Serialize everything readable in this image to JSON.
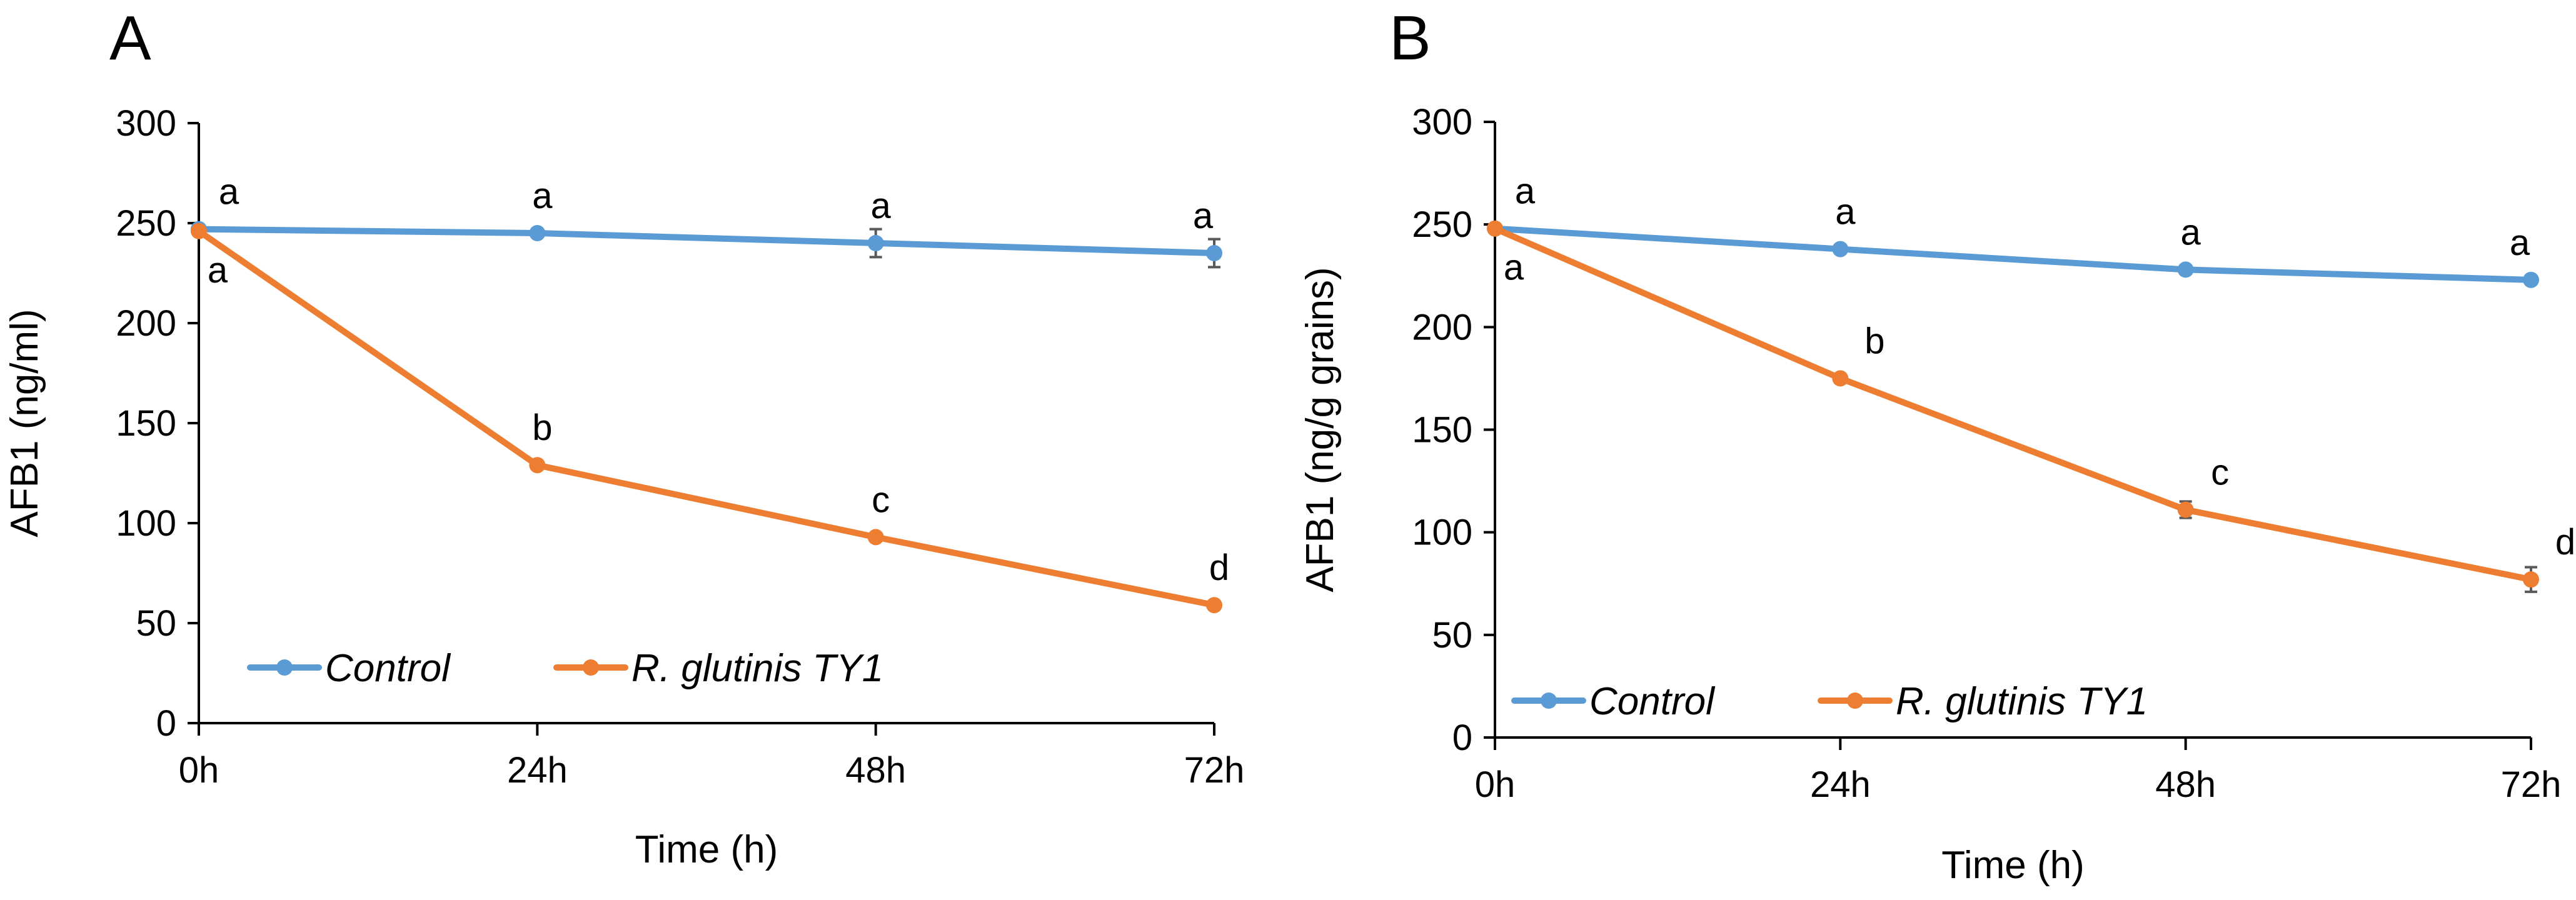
{
  "chart_data": [
    {
      "type": "line",
      "panel_label": "A",
      "title": "",
      "xlabel": "Time (h)",
      "ylabel": "AFB1 (ng/ml)",
      "categories": [
        "0h",
        "24h",
        "48h",
        "72h"
      ],
      "ylim": [
        0,
        300
      ],
      "yticks": [
        0,
        50,
        100,
        150,
        200,
        250,
        300
      ],
      "legend_position": "bottom-left",
      "series": [
        {
          "name": "Control",
          "color": "#5B9BD5",
          "values": [
            247,
            245,
            240,
            235
          ],
          "errors": [
            0,
            2,
            7,
            7
          ],
          "letters": [
            "a",
            "a",
            "a",
            "a"
          ]
        },
        {
          "name": "R. glutinis TY1",
          "color": "#ED7D31",
          "values": [
            246,
            129,
            93,
            59
          ],
          "errors": [
            0,
            2,
            2,
            2
          ],
          "letters": [
            "a",
            "b",
            "c",
            "d"
          ]
        }
      ]
    },
    {
      "type": "line",
      "panel_label": "B",
      "title": "",
      "xlabel": "Time (h)",
      "ylabel": "AFB1 (ng/g grains)",
      "categories": [
        "0h",
        "24h",
        "48h",
        "72h"
      ],
      "ylim": [
        0,
        300
      ],
      "yticks": [
        0,
        50,
        100,
        150,
        200,
        250,
        300
      ],
      "legend_position": "bottom-left",
      "series": [
        {
          "name": "Control",
          "color": "#5B9BD5",
          "values": [
            248,
            238,
            228,
            223
          ],
          "errors": [
            0,
            2,
            2,
            2
          ],
          "letters": [
            "a",
            "a",
            "a",
            "a"
          ]
        },
        {
          "name": "R. glutinis TY1",
          "color": "#ED7D31",
          "values": [
            248,
            175,
            111,
            77
          ],
          "errors": [
            0,
            2,
            4,
            6
          ],
          "letters": [
            "a",
            "b",
            "c",
            "d"
          ]
        }
      ]
    }
  ]
}
